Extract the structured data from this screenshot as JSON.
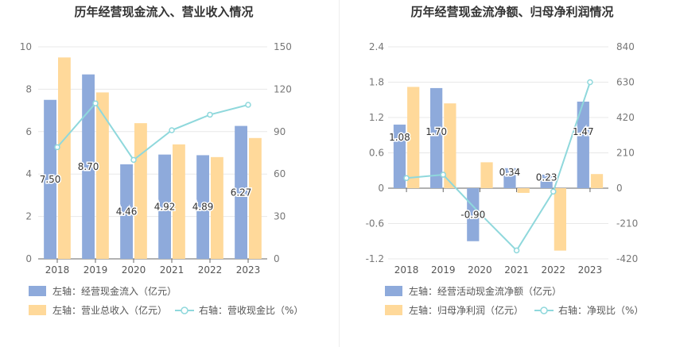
{
  "chart_data": [
    {
      "type": "bar",
      "title": "历年经营现金流入、营业收入情况",
      "categories": [
        "2018",
        "2019",
        "2020",
        "2021",
        "2022",
        "2023"
      ],
      "left_axis": {
        "ticks": [
          "0",
          "2",
          "4",
          "6",
          "8",
          "10"
        ],
        "ylim": [
          0,
          10
        ]
      },
      "right_axis": {
        "ticks": [
          "0",
          "30",
          "60",
          "90",
          "120",
          "150"
        ],
        "ylim": [
          0,
          150
        ]
      },
      "series": [
        {
          "name": "左轴：经营现金流入（亿元）",
          "kind": "bar",
          "axis": "left",
          "color": "#8eaadb",
          "values": [
            7.5,
            8.7,
            4.46,
            4.92,
            4.89,
            6.27
          ],
          "labels": [
            "7.50",
            "8.70",
            "4.46",
            "4.92",
            "4.89",
            "6.27"
          ]
        },
        {
          "name": "左轴：营业总收入（亿元）",
          "kind": "bar",
          "axis": "left",
          "color": "#ffd99a",
          "values": [
            9.5,
            7.85,
            6.4,
            5.4,
            4.8,
            5.7
          ]
        },
        {
          "name": "右轴：营收现金比（%）",
          "kind": "line",
          "axis": "right",
          "color": "#8fd8dc",
          "values": [
            79,
            110,
            70,
            91,
            102,
            109
          ]
        }
      ]
    },
    {
      "type": "bar",
      "title": "历年经营现金流净额、归母净利润情况",
      "categories": [
        "2018",
        "2019",
        "2020",
        "2021",
        "2022",
        "2023"
      ],
      "left_axis": {
        "ticks": [
          "-1.2",
          "-0.6",
          "0",
          "0.6",
          "1.2",
          "1.8",
          "2.4"
        ],
        "ylim": [
          -1.2,
          2.4
        ]
      },
      "right_axis": {
        "ticks": [
          "-420",
          "-210",
          "0",
          "210",
          "420",
          "630",
          "840"
        ],
        "ylim": [
          -420,
          840
        ]
      },
      "series": [
        {
          "name": "左轴：经营活动现金流净额（亿元）",
          "kind": "bar",
          "axis": "left",
          "color": "#8eaadb",
          "values": [
            1.08,
            1.7,
            -0.9,
            0.34,
            0.23,
            1.47
          ],
          "labels": [
            "1.08",
            "1.70",
            "-0.90",
            "0.34",
            "0.23",
            "1.47"
          ]
        },
        {
          "name": "左轴：归母净利润（亿元）",
          "kind": "bar",
          "axis": "left",
          "color": "#ffd99a",
          "values": [
            1.72,
            1.44,
            0.44,
            -0.08,
            -1.06,
            0.24
          ]
        },
        {
          "name": "右轴：净现比（%）",
          "kind": "line",
          "axis": "right",
          "color": "#8fd8dc",
          "values": [
            60,
            80,
            -150,
            -370,
            -20,
            630
          ]
        }
      ]
    }
  ]
}
